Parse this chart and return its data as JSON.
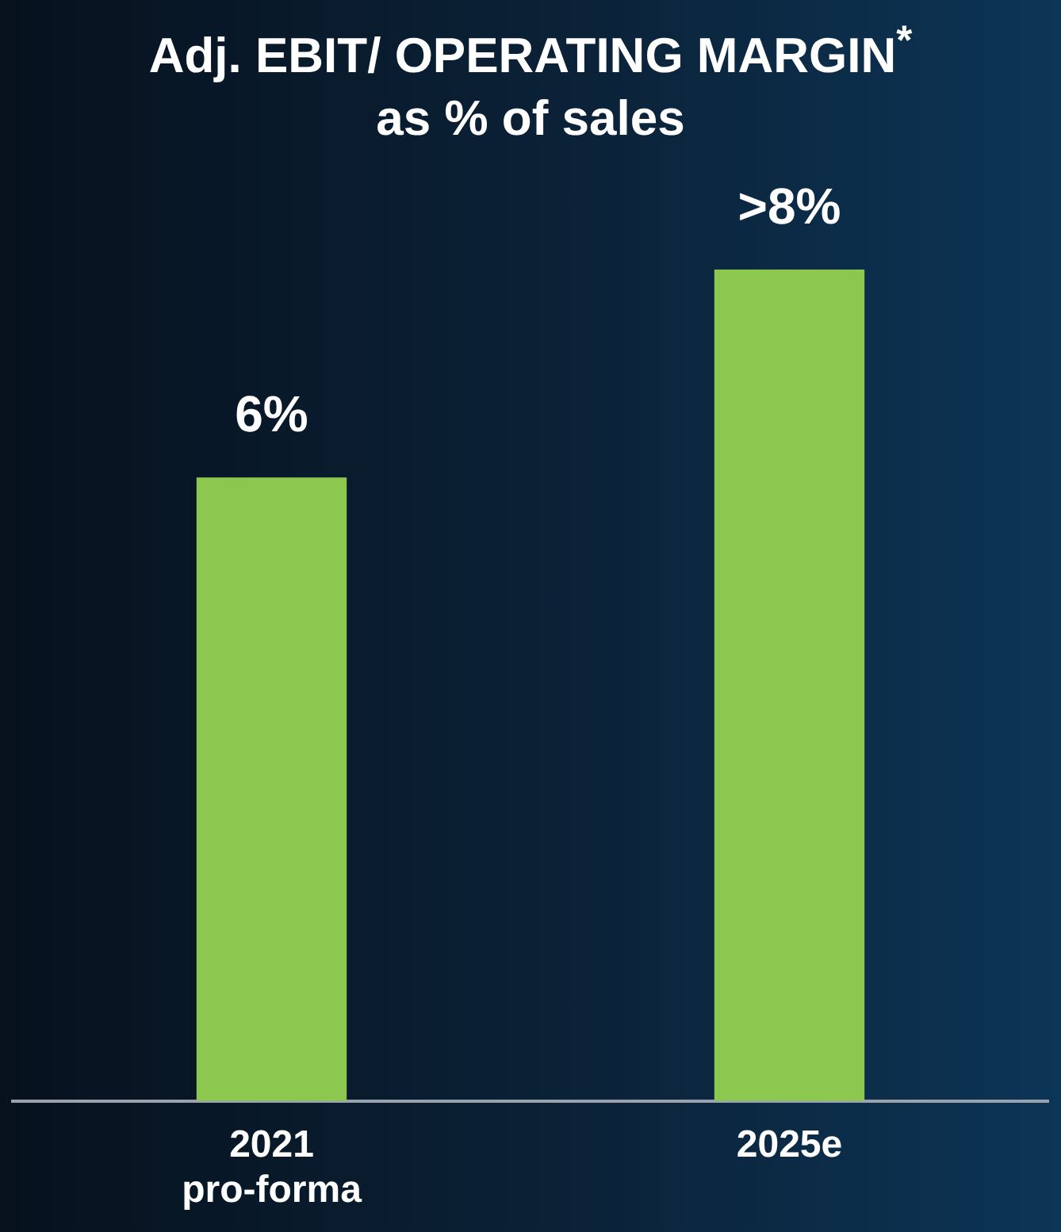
{
  "chart_data": {
    "type": "bar",
    "title": "Adj. EBIT/ OPERATING MARGIN$^{*}$",
    "subtitle": "as % of sales",
    "categories": [
      "2021 pro-forma",
      "2025e"
    ],
    "values": [
      6,
      8
    ],
    "value_labels": [
      "6%",
      ">8%"
    ],
    "color": "#8cc84f",
    "grid": false,
    "legend": false
  }
}
